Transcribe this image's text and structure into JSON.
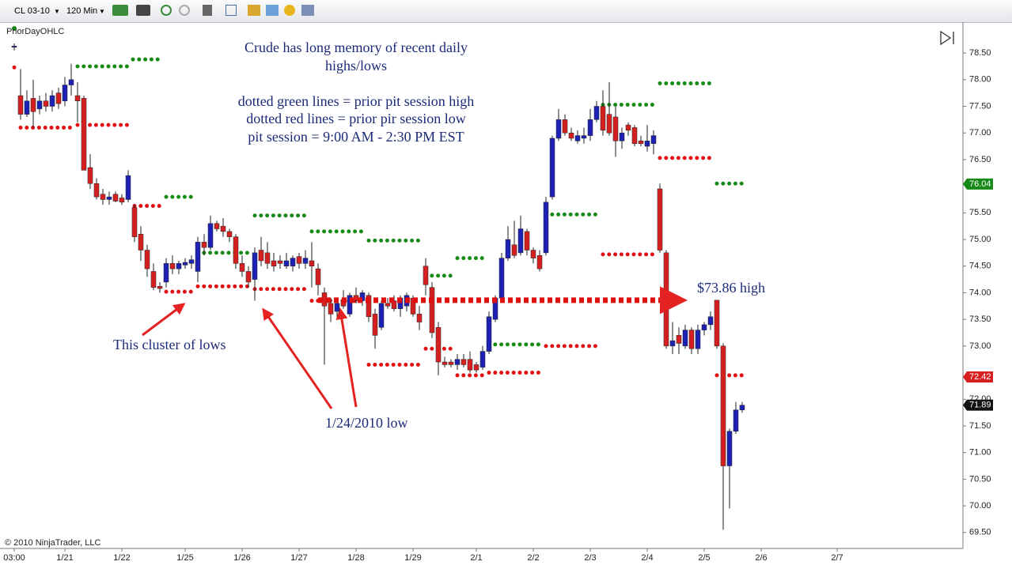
{
  "toolbar": {
    "symbol": "CL 03-10",
    "interval": "120 Min"
  },
  "copyright": "© 2010 NinjaTrader, LLC",
  "chart_data": {
    "type": "candlestick",
    "indicator": "PriorDayOHLC",
    "notes": [
      "Crude has long memory of recent daily",
      "highs/lows",
      "dotted green lines = prior pit session high",
      "dotted red lines = prior pir session low",
      "pit session = 9:00 AM - 2:30 PM EST"
    ],
    "annotations": [
      "This cluster of lows",
      "1/24/2010 low",
      "$73.86 high"
    ],
    "up_color": "#1c22b4",
    "down_color": "#d61f1f",
    "xlim": [
      -2.25,
      149.875
    ],
    "ylim": [
      69.2,
      79.08
    ],
    "xticks": [
      {
        "value": 0,
        "label": "03:00"
      },
      {
        "value": 8,
        "label": "1/21"
      },
      {
        "value": 17,
        "label": "1/22"
      },
      {
        "value": 27,
        "label": "1/25"
      },
      {
        "value": 36,
        "label": "1/26"
      },
      {
        "value": 45,
        "label": "1/27"
      },
      {
        "value": 54,
        "label": "1/28"
      },
      {
        "value": 63,
        "label": "1/29"
      },
      {
        "value": 73,
        "label": "2/1"
      },
      {
        "value": 82,
        "label": "2/2"
      },
      {
        "value": 91,
        "label": "2/3"
      },
      {
        "value": 100,
        "label": "2/4"
      },
      {
        "value": 109,
        "label": "2/5"
      },
      {
        "value": 118,
        "label": "2/6"
      },
      {
        "value": 130,
        "label": "2/7"
      }
    ],
    "yticks": [
      {
        "value": 69.5,
        "label": "69.50"
      },
      {
        "value": 70,
        "label": "70.00"
      },
      {
        "value": 70.5,
        "label": "70.50"
      },
      {
        "value": 71,
        "label": "71.00"
      },
      {
        "value": 71.5,
        "label": "71.50"
      },
      {
        "value": 72,
        "label": "72.00"
      },
      {
        "value": 73,
        "label": "73.00"
      },
      {
        "value": 73.5,
        "label": "73.50"
      },
      {
        "value": 74,
        "label": "74.00"
      },
      {
        "value": 74.5,
        "label": "74.50"
      },
      {
        "value": 75,
        "label": "75.00"
      },
      {
        "value": 75.5,
        "label": "75.50"
      },
      {
        "value": 76.5,
        "label": "76.50"
      },
      {
        "value": 77,
        "label": "77.00"
      },
      {
        "value": 77.5,
        "label": "77.50"
      },
      {
        "value": 78,
        "label": "78.00"
      },
      {
        "value": 78.5,
        "label": "78.50"
      }
    ],
    "candles": [
      [
        78.62,
        78.68,
        78.55,
        78.63
      ],
      [
        77.7,
        78.2,
        77.25,
        77.35
      ],
      [
        77.35,
        77.8,
        77.3,
        77.6
      ],
      [
        77.65,
        78.0,
        77.1,
        77.4
      ],
      [
        77.45,
        77.7,
        77.35,
        77.6
      ],
      [
        77.6,
        77.75,
        77.4,
        77.5
      ],
      [
        77.5,
        77.8,
        77.4,
        77.7
      ],
      [
        77.75,
        77.85,
        77.45,
        77.55
      ],
      [
        77.6,
        78.05,
        77.5,
        77.9
      ],
      [
        77.9,
        78.3,
        77.7,
        78.0
      ],
      [
        77.7,
        77.95,
        77.2,
        77.6
      ],
      [
        77.65,
        77.7,
        76.3,
        76.3
      ],
      [
        76.35,
        76.6,
        75.95,
        76.05
      ],
      [
        76.05,
        76.15,
        75.75,
        75.8
      ],
      [
        75.85,
        75.95,
        75.65,
        75.75
      ],
      [
        75.75,
        75.9,
        75.65,
        75.8
      ],
      [
        75.85,
        75.9,
        75.7,
        75.72
      ],
      [
        75.78,
        75.85,
        75.65,
        75.7
      ],
      [
        75.75,
        76.3,
        75.7,
        76.2
      ],
      [
        75.6,
        75.65,
        74.95,
        75.05
      ],
      [
        75.1,
        75.25,
        74.6,
        74.8
      ],
      [
        74.8,
        74.9,
        74.3,
        74.45
      ],
      [
        74.4,
        74.55,
        74.05,
        74.1
      ],
      [
        74.12,
        74.2,
        74.0,
        74.08
      ],
      [
        74.2,
        74.65,
        74.1,
        74.55
      ],
      [
        74.55,
        74.7,
        74.35,
        74.45
      ],
      [
        74.45,
        74.6,
        74.35,
        74.55
      ],
      [
        74.52,
        74.65,
        74.45,
        74.57
      ],
      [
        74.55,
        74.7,
        74.45,
        74.62
      ],
      [
        74.4,
        75.05,
        74.2,
        74.95
      ],
      [
        74.95,
        75.1,
        74.7,
        74.85
      ],
      [
        74.85,
        75.45,
        74.8,
        75.3
      ],
      [
        75.3,
        75.35,
        75.15,
        75.2
      ],
      [
        75.25,
        75.4,
        75.05,
        75.15
      ],
      [
        75.15,
        75.2,
        74.95,
        75.05
      ],
      [
        75.05,
        75.1,
        74.45,
        74.55
      ],
      [
        74.55,
        74.7,
        74.3,
        74.4
      ],
      [
        74.4,
        74.5,
        74.1,
        74.2
      ],
      [
        74.25,
        74.85,
        73.85,
        74.75
      ],
      [
        74.8,
        75.05,
        74.5,
        74.6
      ],
      [
        74.75,
        74.95,
        74.45,
        74.55
      ],
      [
        74.6,
        74.75,
        74.4,
        74.5
      ],
      [
        74.6,
        74.7,
        74.45,
        74.55
      ],
      [
        74.5,
        74.75,
        74.45,
        74.6
      ],
      [
        74.5,
        74.7,
        74.4,
        74.65
      ],
      [
        74.68,
        74.75,
        74.45,
        74.55
      ],
      [
        74.55,
        74.8,
        74.45,
        74.65
      ],
      [
        74.6,
        74.95,
        74.1,
        74.5
      ],
      [
        74.45,
        74.55,
        73.95,
        74.15
      ],
      [
        74.0,
        74.1,
        72.65,
        73.75
      ],
      [
        73.8,
        73.9,
        73.45,
        73.6
      ],
      [
        73.65,
        73.9,
        73.55,
        73.8
      ],
      [
        73.85,
        74.05,
        73.7,
        73.75
      ],
      [
        73.6,
        74.0,
        73.55,
        73.95
      ],
      [
        73.95,
        74.1,
        73.8,
        73.85
      ],
      [
        73.85,
        74.05,
        73.75,
        74.0
      ],
      [
        73.95,
        74.0,
        73.45,
        73.55
      ],
      [
        73.6,
        73.7,
        72.95,
        73.2
      ],
      [
        73.35,
        73.85,
        73.3,
        73.8
      ],
      [
        73.8,
        73.9,
        73.7,
        73.75
      ],
      [
        73.85,
        73.95,
        73.65,
        73.7
      ],
      [
        73.7,
        73.95,
        73.55,
        73.9
      ],
      [
        73.75,
        74.0,
        73.65,
        73.95
      ],
      [
        73.9,
        73.95,
        73.55,
        73.6
      ],
      [
        73.6,
        73.75,
        73.3,
        73.45
      ],
      [
        74.5,
        74.65,
        73.95,
        74.15
      ],
      [
        74.1,
        74.2,
        73.15,
        73.25
      ],
      [
        73.35,
        73.45,
        72.45,
        72.7
      ],
      [
        72.7,
        72.8,
        72.6,
        72.65
      ],
      [
        72.7,
        72.75,
        72.6,
        72.65
      ],
      [
        72.65,
        72.85,
        72.55,
        72.75
      ],
      [
        72.75,
        72.85,
        72.6,
        72.65
      ],
      [
        72.75,
        72.9,
        72.5,
        72.55
      ],
      [
        72.65,
        72.7,
        72.5,
        72.55
      ],
      [
        72.6,
        73.0,
        72.55,
        72.9
      ],
      [
        72.9,
        73.65,
        72.85,
        73.55
      ],
      [
        73.5,
        73.95,
        73.45,
        73.9
      ],
      [
        73.9,
        74.75,
        73.85,
        74.65
      ],
      [
        74.65,
        75.25,
        74.6,
        75.0
      ],
      [
        74.9,
        75.35,
        74.65,
        74.7
      ],
      [
        74.75,
        75.45,
        74.7,
        75.2
      ],
      [
        75.15,
        75.2,
        74.7,
        74.8
      ],
      [
        74.8,
        74.85,
        74.55,
        74.65
      ],
      [
        74.7,
        74.8,
        74.4,
        74.45
      ],
      [
        74.75,
        75.8,
        74.7,
        75.7
      ],
      [
        75.8,
        76.95,
        75.75,
        76.9
      ],
      [
        76.9,
        77.45,
        76.85,
        77.25
      ],
      [
        77.25,
        77.35,
        76.95,
        77.0
      ],
      [
        77.0,
        77.1,
        76.85,
        76.9
      ],
      [
        76.85,
        77.05,
        76.8,
        76.95
      ],
      [
        76.9,
        77.1,
        76.8,
        76.95
      ],
      [
        76.95,
        77.45,
        76.85,
        77.25
      ],
      [
        77.25,
        77.6,
        77.2,
        77.5
      ],
      [
        77.5,
        77.8,
        76.95,
        77.05
      ],
      [
        77.35,
        77.95,
        76.95,
        77.0
      ],
      [
        77.3,
        77.5,
        76.55,
        76.85
      ],
      [
        76.85,
        77.1,
        76.7,
        77.0
      ],
      [
        77.15,
        77.2,
        76.95,
        77.05
      ],
      [
        77.1,
        77.15,
        76.75,
        76.8
      ],
      [
        76.85,
        76.95,
        76.75,
        76.8
      ],
      [
        76.75,
        77.15,
        76.65,
        76.85
      ],
      [
        76.8,
        77.05,
        76.6,
        76.95
      ],
      [
        75.95,
        76.05,
        74.75,
        74.8
      ],
      [
        74.75,
        74.8,
        72.95,
        73.0
      ],
      [
        73.0,
        73.45,
        72.85,
        73.1
      ],
      [
        73.2,
        73.35,
        72.85,
        73.05
      ],
      [
        73.0,
        73.4,
        72.95,
        73.3
      ],
      [
        73.3,
        73.35,
        72.85,
        72.95
      ],
      [
        72.95,
        73.4,
        72.85,
        73.3
      ],
      [
        73.3,
        73.45,
        73.2,
        73.4
      ],
      [
        73.4,
        73.65,
        73.3,
        73.55
      ],
      [
        73.86,
        73.86,
        72.95,
        73.0
      ],
      [
        73.0,
        73.05,
        69.55,
        70.75
      ],
      [
        70.75,
        71.45,
        69.95,
        71.4
      ],
      [
        71.4,
        71.95,
        71.35,
        71.8
      ],
      [
        71.8,
        71.95,
        71.75,
        71.89
      ]
    ],
    "levels": [
      {
        "kind": "high",
        "color": "#168a16",
        "value": 78.25,
        "from": 10,
        "to": 18.4
      },
      {
        "kind": "high",
        "color": "#168a16",
        "value": 78.38,
        "from": 18.75,
        "to": 23.4
      },
      {
        "kind": "high",
        "color": "#168a16",
        "value": 75.8,
        "from": 24,
        "to": 28.4
      },
      {
        "kind": "high",
        "color": "#168a16",
        "value": 74.75,
        "from": 29,
        "to": 37.5
      },
      {
        "kind": "high",
        "color": "#168a16",
        "value": 75.45,
        "from": 38,
        "to": 46
      },
      {
        "kind": "high",
        "color": "#168a16",
        "value": 75.15,
        "from": 47,
        "to": 55
      },
      {
        "kind": "high",
        "color": "#168a16",
        "value": 74.98,
        "from": 56,
        "to": 64
      },
      {
        "kind": "high",
        "color": "#168a16",
        "value": 74.32,
        "from": 65,
        "to": 69.4
      },
      {
        "kind": "high",
        "color": "#168a16",
        "value": 74.65,
        "from": 70,
        "to": 74.4
      },
      {
        "kind": "high",
        "color": "#168a16",
        "value": 73.03,
        "from": 75,
        "to": 83.4
      },
      {
        "kind": "high",
        "color": "#168a16",
        "value": 75.47,
        "from": 84,
        "to": 92.4
      },
      {
        "kind": "high",
        "color": "#168a16",
        "value": 77.53,
        "from": 93,
        "to": 101
      },
      {
        "kind": "high",
        "color": "#168a16",
        "value": 77.93,
        "from": 102,
        "to": 110
      },
      {
        "kind": "high",
        "color": "#168a16",
        "value": 76.05,
        "from": 111,
        "to": 115.4
      },
      {
        "kind": "low",
        "color": "#e01010",
        "value": 78.23,
        "from": 0,
        "to": 0
      },
      {
        "kind": "low",
        "color": "#e01010",
        "value": 77.1,
        "from": 1,
        "to": 9.4
      },
      {
        "kind": "low",
        "color": "#e01010",
        "value": 77.15,
        "from": 10,
        "to": 18.4
      },
      {
        "kind": "low",
        "color": "#e01010",
        "value": 75.63,
        "from": 19,
        "to": 23.4
      },
      {
        "kind": "low",
        "color": "#e01010",
        "value": 74.02,
        "from": 24,
        "to": 28.4
      },
      {
        "kind": "low",
        "color": "#e01010",
        "value": 74.12,
        "from": 29,
        "to": 37.5
      },
      {
        "kind": "low",
        "color": "#e01010",
        "value": 74.07,
        "from": 38,
        "to": 46
      },
      {
        "kind": "low",
        "color": "#e01010",
        "value": 73.85,
        "from": 47,
        "to": 55
      },
      {
        "kind": "low",
        "color": "#e01010",
        "value": 72.65,
        "from": 56,
        "to": 64
      },
      {
        "kind": "low",
        "color": "#e01010",
        "value": 72.95,
        "from": 65,
        "to": 69.4
      },
      {
        "kind": "low",
        "color": "#e01010",
        "value": 72.45,
        "from": 70,
        "to": 74.4
      },
      {
        "kind": "low",
        "color": "#e01010",
        "value": 72.5,
        "from": 75,
        "to": 83.4
      },
      {
        "kind": "low",
        "color": "#e01010",
        "value": 73.0,
        "from": 84,
        "to": 92.4
      },
      {
        "kind": "low",
        "color": "#e01010",
        "value": 74.72,
        "from": 93,
        "to": 101
      },
      {
        "kind": "low",
        "color": "#e01010",
        "value": 76.53,
        "from": 102,
        "to": 110
      },
      {
        "kind": "low",
        "color": "#e01010",
        "value": 72.45,
        "from": 111,
        "to": 115.4
      }
    ],
    "highlight": {
      "value": 73.86,
      "from": 48,
      "to": 105.5,
      "color": "#e01010"
    },
    "price_markers": [
      {
        "value": 76.04,
        "color": "#168a16"
      },
      {
        "value": 72.42,
        "color": "#d61f1f"
      },
      {
        "value": 71.89,
        "color": "#111111"
      }
    ]
  }
}
